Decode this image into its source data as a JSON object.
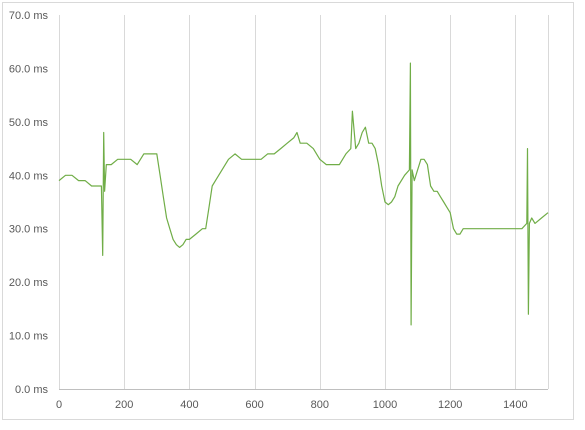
{
  "chart_data": {
    "type": "line",
    "title": "",
    "xlabel": "",
    "ylabel": "",
    "xlim": [
      0,
      1500
    ],
    "ylim": [
      0,
      70
    ],
    "x_ticks": [
      0,
      200,
      400,
      600,
      800,
      1000,
      1200,
      1400
    ],
    "x_tick_labels": [
      "0",
      "200",
      "400",
      "600",
      "800",
      "1000",
      "1200",
      "1400"
    ],
    "y_ticks": [
      0,
      10,
      20,
      30,
      40,
      50,
      60,
      70
    ],
    "y_tick_labels": [
      "0.0 ms",
      "10.0 ms",
      "20.0 ms",
      "30.0 ms",
      "40.0 ms",
      "50.0 ms",
      "60.0 ms",
      "70.0 ms"
    ],
    "grid": "vertical",
    "legend": "none",
    "series_color": "#70ad47",
    "series": [
      {
        "x": [
          0,
          20,
          40,
          60,
          80,
          100,
          120,
          130,
          134,
          137,
          140,
          145,
          160,
          180,
          200,
          220,
          240,
          260,
          280,
          300,
          310,
          320,
          330,
          340,
          350,
          360,
          370,
          380,
          390,
          400,
          420,
          440,
          450,
          460,
          470,
          480,
          490,
          500,
          520,
          540,
          560,
          580,
          600,
          620,
          640,
          660,
          680,
          700,
          720,
          730,
          740,
          760,
          780,
          800,
          820,
          840,
          860,
          880,
          895,
          900,
          910,
          920,
          930,
          940,
          950,
          960,
          970,
          980,
          990,
          1000,
          1010,
          1020,
          1030,
          1040,
          1060,
          1075,
          1078,
          1080,
          1083,
          1090,
          1100,
          1110,
          1120,
          1130,
          1140,
          1150,
          1160,
          1170,
          1180,
          1190,
          1200,
          1210,
          1220,
          1230,
          1240,
          1260,
          1280,
          1300,
          1320,
          1340,
          1360,
          1380,
          1400,
          1420,
          1435,
          1437,
          1440,
          1443,
          1450,
          1460,
          1480,
          1500
        ],
        "y": [
          39,
          40,
          40,
          39,
          39,
          38,
          38,
          38,
          25,
          48,
          37,
          42,
          42,
          43,
          43,
          43,
          42,
          44,
          44,
          44,
          40,
          36,
          32,
          30,
          28,
          27,
          26.5,
          27,
          28,
          28,
          29,
          30,
          30,
          34,
          38,
          39,
          40,
          41,
          43,
          44,
          43,
          43,
          43,
          43,
          44,
          44,
          45,
          46,
          47,
          48,
          46,
          46,
          45,
          43,
          42,
          42,
          42,
          44,
          45,
          52,
          45,
          46,
          48,
          49,
          46,
          46,
          45,
          42,
          38,
          35,
          34.5,
          35,
          36,
          38,
          40,
          41,
          61,
          12,
          41,
          39,
          41,
          43,
          43,
          42,
          38,
          37,
          37,
          36,
          35,
          34,
          33,
          30,
          29,
          29,
          30,
          30,
          30,
          30,
          30,
          30,
          30,
          30,
          30,
          30,
          31,
          45,
          14,
          31,
          32,
          31,
          32,
          33
        ]
      }
    ]
  }
}
